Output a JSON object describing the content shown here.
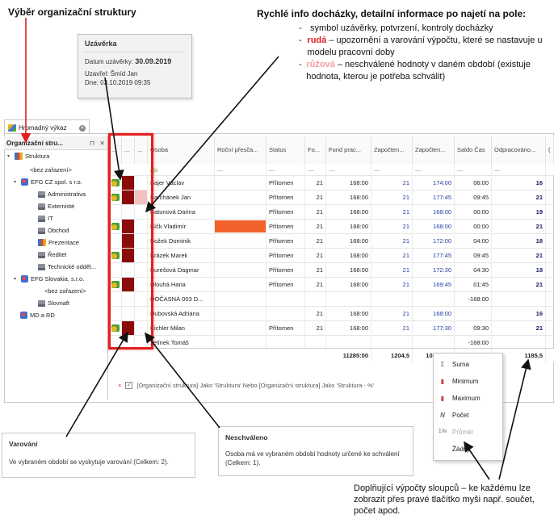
{
  "annotations": {
    "org_structure_title": "Výběr organizační struktury",
    "quick_info_title": "Rychlé info docházky, detailní informace po najetí na pole:",
    "bullet1": "symbol uzávěrky, potvrzení, kontroly docházky",
    "bullet2_strong": "rudá",
    "bullet2_rest": " – upozornění a varování výpočtu, které se nastavuje u modelu pracovní doby",
    "bullet3_strong": "růžová",
    "bullet3_rest": " – neschválené hodnoty v daném období (existuje hodnota, kterou je potřeba schválit)",
    "bullet_dash": "-",
    "footnote": "Doplňující výpočty sloupců – ke každému lze zobrazit přes pravé tlačítko myši např. součet, počet apod.",
    "colors": {
      "dark_red": "#8b0b0b",
      "pink": "#f5c0c0",
      "highlight_red": "#e02020",
      "orange_bar": "#f0612b"
    }
  },
  "tooltip": {
    "title": "Uzávěrka",
    "date_label": "Datum uzávěrky:",
    "date_value": "30.09.2019",
    "closed_by": "Uzavřel: Šmíd Jan",
    "day": "Dne: 03.10.2019 09:35"
  },
  "tab": {
    "label": "Hromadný výkaz"
  },
  "tree": {
    "header": "Organizační stru...",
    "pin": "⊓",
    "close": "✕",
    "nodes": [
      {
        "label": "Struktura"
      },
      {
        "label": "<bez zařazení>"
      },
      {
        "label": "EFG CZ spol. s r.o."
      },
      {
        "label": "Administrativa"
      },
      {
        "label": "Externisté"
      },
      {
        "label": "IT"
      },
      {
        "label": "Obchod"
      },
      {
        "label": "Prezentace"
      },
      {
        "label": "Ředitel"
      },
      {
        "label": "Technické odděl..."
      },
      {
        "label": "EFG Slovakia, s.r.o."
      },
      {
        "label": "<bez zařazení>"
      },
      {
        "label": "Slovnaft"
      },
      {
        "label": "MD a RD"
      }
    ]
  },
  "grid": {
    "headers": [
      "...",
      "...",
      "...",
      "Osoba",
      "Roční přesča...",
      "Status",
      "Fo...",
      "Fond prac...",
      "Započten...",
      "Započten...",
      "Saldo Čas",
      "Odpracováno...",
      "("
    ],
    "filter_row": [
      "a|c",
      "—",
      "—",
      "—",
      "—",
      "—",
      "—",
      "—",
      "—"
    ],
    "rows": [
      {
        "name": "Bajer Václav",
        "status": "Přítomen",
        "fo": "21",
        "fond": "168:00",
        "z1": "21",
        "z2": "174:00",
        "saldo": "06:00",
        "odp": "16"
      },
      {
        "name": "Barchánek Jan",
        "status": "Přítomen",
        "fo": "21",
        "fond": "168:00",
        "z1": "21",
        "z2": "177:45",
        "saldo": "09:45",
        "odp": "21"
      },
      {
        "name": "Batunová Darina",
        "status": "Přítomen",
        "fo": "21",
        "fond": "168:00",
        "z1": "21",
        "z2": "168:00",
        "saldo": "00:00",
        "odp": "19"
      },
      {
        "name": "Bíčk Vladimír",
        "status": "Přítomen",
        "fo": "21",
        "fond": "168:00",
        "z1": "21",
        "z2": "168:00",
        "saldo": "00:00",
        "odp": "21"
      },
      {
        "name": "Božek Dominik",
        "status": "Přítomen",
        "fo": "21",
        "fond": "168:00",
        "z1": "21",
        "z2": "172:00",
        "saldo": "04:00",
        "odp": "18"
      },
      {
        "name": "Brázek Marek",
        "status": "Přítomen",
        "fo": "21",
        "fond": "168:00",
        "z1": "21",
        "z2": "177:45",
        "saldo": "09:45",
        "odp": "21"
      },
      {
        "name": "Burešová Dagmar",
        "status": "Přítomen",
        "fo": "21",
        "fond": "168:00",
        "z1": "21",
        "z2": "172:30",
        "saldo": "04:30",
        "odp": "18"
      },
      {
        "name": "Dlouhá Hana",
        "status": "Přítomen",
        "fo": "21",
        "fond": "168:00",
        "z1": "21",
        "z2": "169:45",
        "saldo": "01:45",
        "odp": "21"
      },
      {
        "name": "DOČASNÁ 003 D...",
        "status": "",
        "fo": "",
        "fond": "",
        "z1": "",
        "z2": "",
        "saldo": "-168:00",
        "odp": ""
      },
      {
        "name": "Dubovská Adriana",
        "status": "",
        "fo": "21",
        "fond": "168:00",
        "z1": "21",
        "z2": "168:00",
        "saldo": "",
        "odp": "16"
      },
      {
        "name": "Eichler Milan",
        "status": "Přítomen",
        "fo": "21",
        "fond": "168:00",
        "z1": "21",
        "z2": "177:30",
        "saldo": "09:30",
        "odp": "21"
      },
      {
        "name": "Jelínek Tomáš",
        "status": "",
        "fo": "",
        "fond": "",
        "z1": "",
        "z2": "",
        "saldo": "-168:00",
        "odp": ""
      }
    ],
    "totals": {
      "fond": "11285:00",
      "z1": "1204,5",
      "z2": "10013:30",
      "saldo": "-769:30",
      "odp": "1185,5"
    }
  },
  "filter": {
    "x": "×",
    "check": "✓",
    "text": "[Organizační struktura] Jako 'Struktura' Nebo [Organizační struktura] Jako 'Struktura - %'"
  },
  "menu": {
    "items": [
      {
        "icon": "Σ",
        "label": "Suma"
      },
      {
        "icon": "▮",
        "label": "Minimum"
      },
      {
        "icon": "▮",
        "label": "Maximum"
      },
      {
        "icon": "N",
        "label": "Počet"
      },
      {
        "icon": "Σ/N",
        "label": "Průměr"
      },
      {
        "icon": "",
        "label": "Žádný"
      }
    ]
  },
  "panels": {
    "warning_title": "Varování",
    "warning_text": "Ve vybraném období se vyskytuje varování (Celkem: 2).",
    "unapproved_title": "Neschváleno",
    "unapproved_text": "Osoba má ve vybraném období hodnoty určené ke schválení (Celkem: 1)."
  }
}
